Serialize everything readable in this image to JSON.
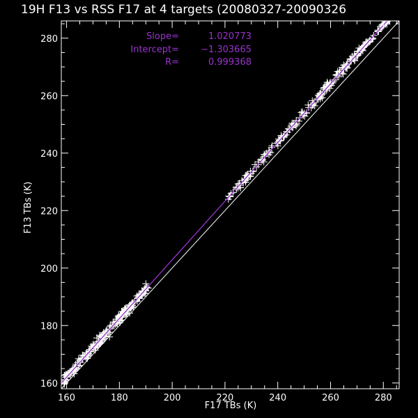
{
  "chart_data": {
    "type": "scatter",
    "title": "19H F13 vs RSS F17 at 4 targets (20080327-20090326",
    "xlabel": "F17 TBs (K)",
    "ylabel": "F13 TBs (K)",
    "xlim": [
      158,
      286
    ],
    "ylim": [
      158,
      286
    ],
    "xticks": [
      160,
      180,
      200,
      220,
      240,
      260,
      280
    ],
    "yticks": [
      160,
      180,
      200,
      220,
      240,
      260,
      280
    ],
    "grid": false,
    "marker": "+",
    "stats": [
      {
        "label": "Slope=",
        "value": "1.020773"
      },
      {
        "label": "Intercept=",
        "value": "−1.303665"
      },
      {
        "label": "R=",
        "value": "0.999368"
      }
    ],
    "fit_line": {
      "slope": 1.020773,
      "intercept": -1.303665,
      "color": "#9933cc"
    },
    "reference_line": {
      "slope": 1,
      "intercept": 0,
      "color": "#ffffff"
    },
    "clusters": [
      {
        "x_range": [
          159,
          191
        ],
        "count": 230,
        "scatter": 1.5
      },
      {
        "x_range": [
          221,
          247
        ],
        "count": 90,
        "scatter": 1.3
      },
      {
        "x_range": [
          247,
          271
        ],
        "count": 110,
        "scatter": 1.4
      },
      {
        "x_range": [
          271,
          283
        ],
        "count": 60,
        "scatter": 0.8
      }
    ],
    "colors": {
      "background": "#000000",
      "axes": "#ffffff",
      "points": "#ffffff",
      "stats_text": "#9933cc"
    }
  }
}
